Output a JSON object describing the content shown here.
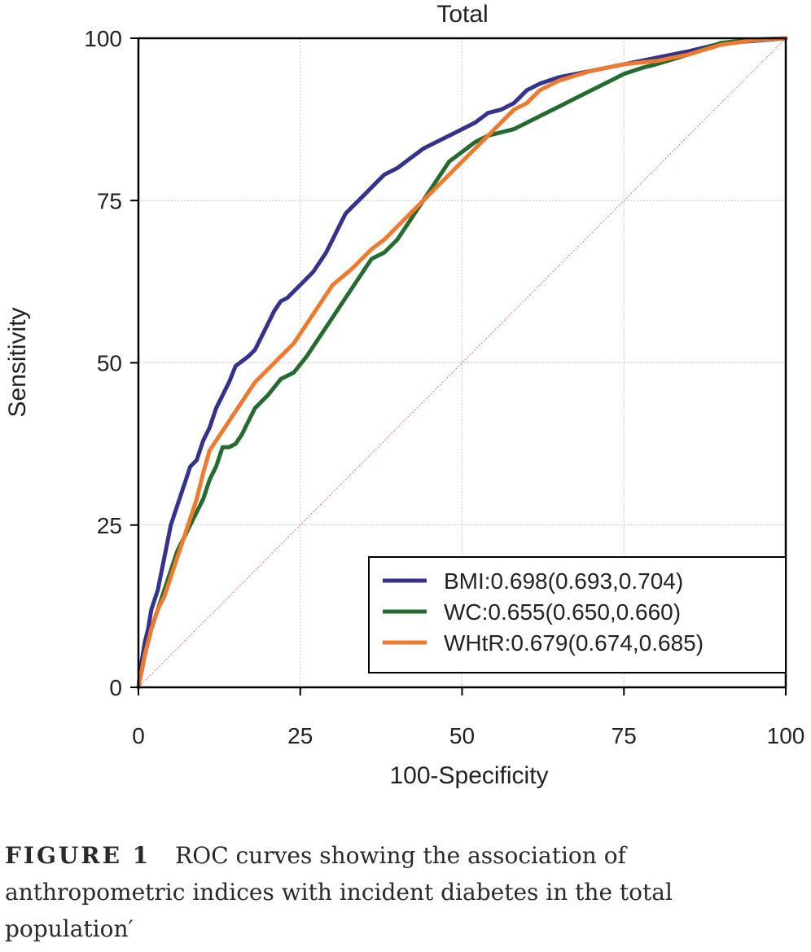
{
  "chart_data": {
    "type": "line",
    "title": "Total",
    "xlabel": "100-Specificity",
    "ylabel": "Sensitivity",
    "xlim": [
      0,
      100
    ],
    "ylim": [
      0,
      100
    ],
    "xticks": [
      "0",
      "25",
      "50",
      "75",
      "100"
    ],
    "yticks": [
      "0",
      "25",
      "50",
      "75",
      "100"
    ],
    "grid": true,
    "legend_position": "bottom-right",
    "reference_line": {
      "points": [
        [
          0,
          0
        ],
        [
          100,
          100
        ]
      ],
      "color": "#c87a86"
    },
    "series": [
      {
        "name": "BMI:0.698(0.693,0.704)",
        "color": "#33338f",
        "points": [
          [
            0,
            0
          ],
          [
            0.5,
            4
          ],
          [
            1,
            7
          ],
          [
            1.5,
            9
          ],
          [
            2,
            12
          ],
          [
            3,
            15
          ],
          [
            4,
            20
          ],
          [
            5,
            25
          ],
          [
            6,
            28
          ],
          [
            7,
            31
          ],
          [
            8,
            34
          ],
          [
            9,
            35
          ],
          [
            10,
            38
          ],
          [
            11,
            40
          ],
          [
            12,
            43
          ],
          [
            13,
            45
          ],
          [
            14,
            47
          ],
          [
            15,
            49.5
          ],
          [
            17,
            51
          ],
          [
            18,
            52
          ],
          [
            19,
            54
          ],
          [
            20,
            56
          ],
          [
            21,
            58
          ],
          [
            22,
            59.5
          ],
          [
            23,
            60
          ],
          [
            24,
            61
          ],
          [
            25,
            62
          ],
          [
            26,
            63
          ],
          [
            27,
            64
          ],
          [
            28,
            65.5
          ],
          [
            29,
            67
          ],
          [
            30,
            69
          ],
          [
            31,
            71
          ],
          [
            32,
            73
          ],
          [
            33,
            74
          ],
          [
            34,
            75
          ],
          [
            35,
            76
          ],
          [
            36,
            77
          ],
          [
            37,
            78
          ],
          [
            38,
            79
          ],
          [
            40,
            80
          ],
          [
            42,
            81.5
          ],
          [
            44,
            83
          ],
          [
            46,
            84
          ],
          [
            48,
            85
          ],
          [
            50,
            86
          ],
          [
            52,
            87
          ],
          [
            54,
            88.5
          ],
          [
            56,
            89
          ],
          [
            58,
            90
          ],
          [
            60,
            92
          ],
          [
            62,
            93
          ],
          [
            65,
            94
          ],
          [
            70,
            95
          ],
          [
            75,
            96
          ],
          [
            80,
            97
          ],
          [
            85,
            98
          ],
          [
            90,
            99.2
          ],
          [
            95,
            99.6
          ],
          [
            100,
            100
          ]
        ]
      },
      {
        "name": "WC:0.655(0.650,0.660)",
        "color": "#236b2f",
        "points": [
          [
            0,
            0
          ],
          [
            1,
            5
          ],
          [
            2,
            9
          ],
          [
            3,
            12
          ],
          [
            4,
            15
          ],
          [
            5,
            18
          ],
          [
            6,
            21
          ],
          [
            7,
            23
          ],
          [
            8,
            25
          ],
          [
            9,
            27
          ],
          [
            10,
            29
          ],
          [
            11,
            32
          ],
          [
            12,
            34
          ],
          [
            13,
            37
          ],
          [
            14,
            37
          ],
          [
            15,
            37.5
          ],
          [
            16,
            39
          ],
          [
            17,
            41
          ],
          [
            18,
            43
          ],
          [
            20,
            45
          ],
          [
            22,
            47.5
          ],
          [
            24,
            48.5
          ],
          [
            26,
            51
          ],
          [
            28,
            54
          ],
          [
            30,
            57
          ],
          [
            32,
            60
          ],
          [
            34,
            63
          ],
          [
            36,
            66
          ],
          [
            38,
            67
          ],
          [
            40,
            69
          ],
          [
            42,
            72
          ],
          [
            44,
            75
          ],
          [
            46,
            78
          ],
          [
            48,
            81
          ],
          [
            50,
            82.5
          ],
          [
            52,
            84
          ],
          [
            54,
            85
          ],
          [
            56,
            85.5
          ],
          [
            58,
            86
          ],
          [
            60,
            87
          ],
          [
            62,
            88
          ],
          [
            65,
            89.5
          ],
          [
            68,
            91
          ],
          [
            70,
            92
          ],
          [
            73,
            93.5
          ],
          [
            75,
            94.5
          ],
          [
            78,
            95.5
          ],
          [
            80,
            96
          ],
          [
            85,
            97.5
          ],
          [
            90,
            99.3
          ],
          [
            95,
            99.8
          ],
          [
            100,
            100
          ]
        ]
      },
      {
        "name": "WHtR:0.679(0.674,0.685)",
        "color": "#ef7a2e",
        "points": [
          [
            0,
            0
          ],
          [
            1,
            5
          ],
          [
            2,
            9
          ],
          [
            3,
            12
          ],
          [
            4,
            14
          ],
          [
            5,
            17
          ],
          [
            6,
            20
          ],
          [
            7,
            23
          ],
          [
            8,
            26
          ],
          [
            9,
            29
          ],
          [
            10,
            33
          ],
          [
            11,
            36.5
          ],
          [
            12,
            38
          ],
          [
            14,
            41
          ],
          [
            16,
            44
          ],
          [
            18,
            47
          ],
          [
            20,
            49
          ],
          [
            22,
            51
          ],
          [
            24,
            53
          ],
          [
            26,
            56
          ],
          [
            28,
            59
          ],
          [
            30,
            62
          ],
          [
            33,
            64.5
          ],
          [
            36,
            67.5
          ],
          [
            38,
            69
          ],
          [
            40,
            71
          ],
          [
            42,
            73
          ],
          [
            44,
            75
          ],
          [
            46,
            77
          ],
          [
            48,
            79
          ],
          [
            50,
            81
          ],
          [
            52,
            83
          ],
          [
            54,
            85
          ],
          [
            56,
            87
          ],
          [
            58,
            89
          ],
          [
            60,
            90
          ],
          [
            62,
            92
          ],
          [
            65,
            93.5
          ],
          [
            70,
            95
          ],
          [
            75,
            96
          ],
          [
            80,
            96.5
          ],
          [
            85,
            97.5
          ],
          [
            90,
            99
          ],
          [
            95,
            99.7
          ],
          [
            100,
            100
          ]
        ]
      }
    ]
  },
  "caption": {
    "label": "FIGURE 1",
    "text": "ROC curves showing the association of anthropometric indices with incident diabetes in the total population′"
  }
}
